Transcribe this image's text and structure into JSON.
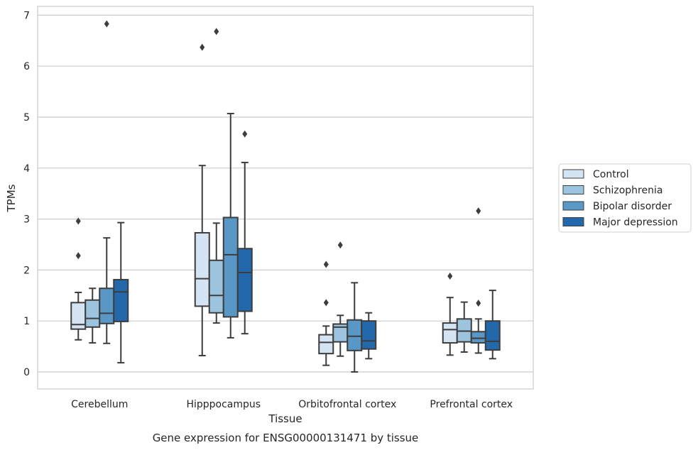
{
  "caption": "Gene expression for ENSG00000131471 by tissue",
  "chart_data": {
    "type": "box",
    "title": "",
    "xlabel": "Tissue",
    "ylabel": "TPMs",
    "ylim": [
      -0.33,
      7.2
    ],
    "yticks": [
      0,
      1,
      2,
      3,
      4,
      5,
      6,
      7
    ],
    "grid": "horizontal",
    "legend_position": "right",
    "categories": [
      "Cerebellum",
      "Hipppocampus",
      "Orbitofrontal cortex",
      "Prefrontal cortex"
    ],
    "series": [
      {
        "name": "Control",
        "color": "#d5e4f3",
        "boxes": [
          {
            "whisker_low": 0.63,
            "q1": 0.84,
            "median": 0.93,
            "q3": 1.36,
            "whisker_high": 1.56,
            "outliers": [
              2.96,
              2.28
            ]
          },
          {
            "whisker_low": 0.32,
            "q1": 1.29,
            "median": 1.83,
            "q3": 2.73,
            "whisker_high": 4.05,
            "outliers": [
              6.37
            ]
          },
          {
            "whisker_low": 0.13,
            "q1": 0.36,
            "median": 0.58,
            "q3": 0.73,
            "whisker_high": 0.9,
            "outliers": [
              2.11,
              1.36
            ]
          },
          {
            "whisker_low": 0.33,
            "q1": 0.57,
            "median": 0.83,
            "q3": 0.96,
            "whisker_high": 1.46,
            "outliers": [
              1.88
            ]
          }
        ]
      },
      {
        "name": "Schizophrenia",
        "color": "#9dc4df",
        "boxes": [
          {
            "whisker_low": 0.57,
            "q1": 0.88,
            "median": 1.05,
            "q3": 1.41,
            "whisker_high": 1.64,
            "outliers": []
          },
          {
            "whisker_low": 0.96,
            "q1": 1.16,
            "median": 1.5,
            "q3": 2.19,
            "whisker_high": 2.92,
            "outliers": [
              6.68
            ]
          },
          {
            "whisker_low": 0.31,
            "q1": 0.59,
            "median": 0.88,
            "q3": 0.94,
            "whisker_high": 1.11,
            "outliers": [
              2.49
            ]
          },
          {
            "whisker_low": 0.39,
            "q1": 0.59,
            "median": 0.8,
            "q3": 1.04,
            "whisker_high": 1.37,
            "outliers": []
          }
        ]
      },
      {
        "name": "Bipolar disorder",
        "color": "#5998c6",
        "boxes": [
          {
            "whisker_low": 0.56,
            "q1": 0.95,
            "median": 1.15,
            "q3": 1.64,
            "whisker_high": 2.63,
            "outliers": [
              6.83
            ]
          },
          {
            "whisker_low": 0.67,
            "q1": 1.08,
            "median": 2.3,
            "q3": 3.03,
            "whisker_high": 5.07,
            "outliers": []
          },
          {
            "whisker_low": 0.0,
            "q1": 0.42,
            "median": 0.7,
            "q3": 1.02,
            "whisker_high": 1.75,
            "outliers": []
          },
          {
            "whisker_low": 0.37,
            "q1": 0.57,
            "median": 0.66,
            "q3": 0.79,
            "whisker_high": 1.04,
            "outliers": [
              3.16,
              1.35
            ]
          }
        ]
      },
      {
        "name": "Major depression",
        "color": "#2268ab",
        "boxes": [
          {
            "whisker_low": 0.18,
            "q1": 0.99,
            "median": 1.57,
            "q3": 1.81,
            "whisker_high": 2.93,
            "outliers": []
          },
          {
            "whisker_low": 0.75,
            "q1": 1.19,
            "median": 1.95,
            "q3": 2.42,
            "whisker_high": 4.11,
            "outliers": [
              4.67
            ]
          },
          {
            "whisker_low": 0.26,
            "q1": 0.45,
            "median": 0.61,
            "q3": 1.0,
            "whisker_high": 1.16,
            "outliers": []
          },
          {
            "whisker_low": 0.26,
            "q1": 0.43,
            "median": 0.6,
            "q3": 1.0,
            "whisker_high": 1.6,
            "outliers": []
          }
        ]
      }
    ]
  }
}
